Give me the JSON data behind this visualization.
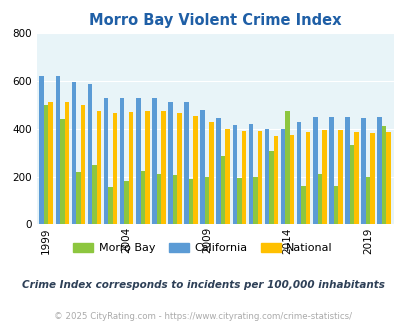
{
  "title": "Morro Bay Violent Crime Index",
  "years": [
    1999,
    2000,
    2001,
    2002,
    2003,
    2004,
    2005,
    2006,
    2007,
    2008,
    2009,
    2010,
    2011,
    2012,
    2013,
    2014,
    2015,
    2016,
    2017,
    2018,
    2019,
    2020
  ],
  "morro_bay": [
    500,
    440,
    220,
    250,
    155,
    180,
    225,
    210,
    205,
    190,
    200,
    285,
    195,
    200,
    305,
    475,
    160,
    210,
    160,
    330,
    200,
    410
  ],
  "california": [
    620,
    620,
    595,
    585,
    530,
    530,
    530,
    530,
    510,
    510,
    480,
    445,
    415,
    420,
    400,
    400,
    430,
    450,
    450,
    450,
    445,
    450
  ],
  "national": [
    510,
    510,
    500,
    475,
    465,
    470,
    475,
    475,
    465,
    455,
    430,
    400,
    390,
    390,
    370,
    375,
    385,
    395,
    395,
    385,
    380,
    385
  ],
  "color_morro": "#8dc63f",
  "color_california": "#5b9bd5",
  "color_national": "#ffc000",
  "bg_color": "#e8f4f8",
  "ylim": [
    0,
    800
  ],
  "yticks": [
    0,
    200,
    400,
    600,
    800
  ],
  "xtick_years": [
    1999,
    2004,
    2009,
    2014,
    2019
  ],
  "subtitle": "Crime Index corresponds to incidents per 100,000 inhabitants",
  "footer": "© 2025 CityRating.com - https://www.cityrating.com/crime-statistics/",
  "legend_labels": [
    "Morro Bay",
    "California",
    "National"
  ],
  "title_color": "#1f5fa6",
  "subtitle_color": "#2e4057",
  "footer_color": "#aaaaaa"
}
